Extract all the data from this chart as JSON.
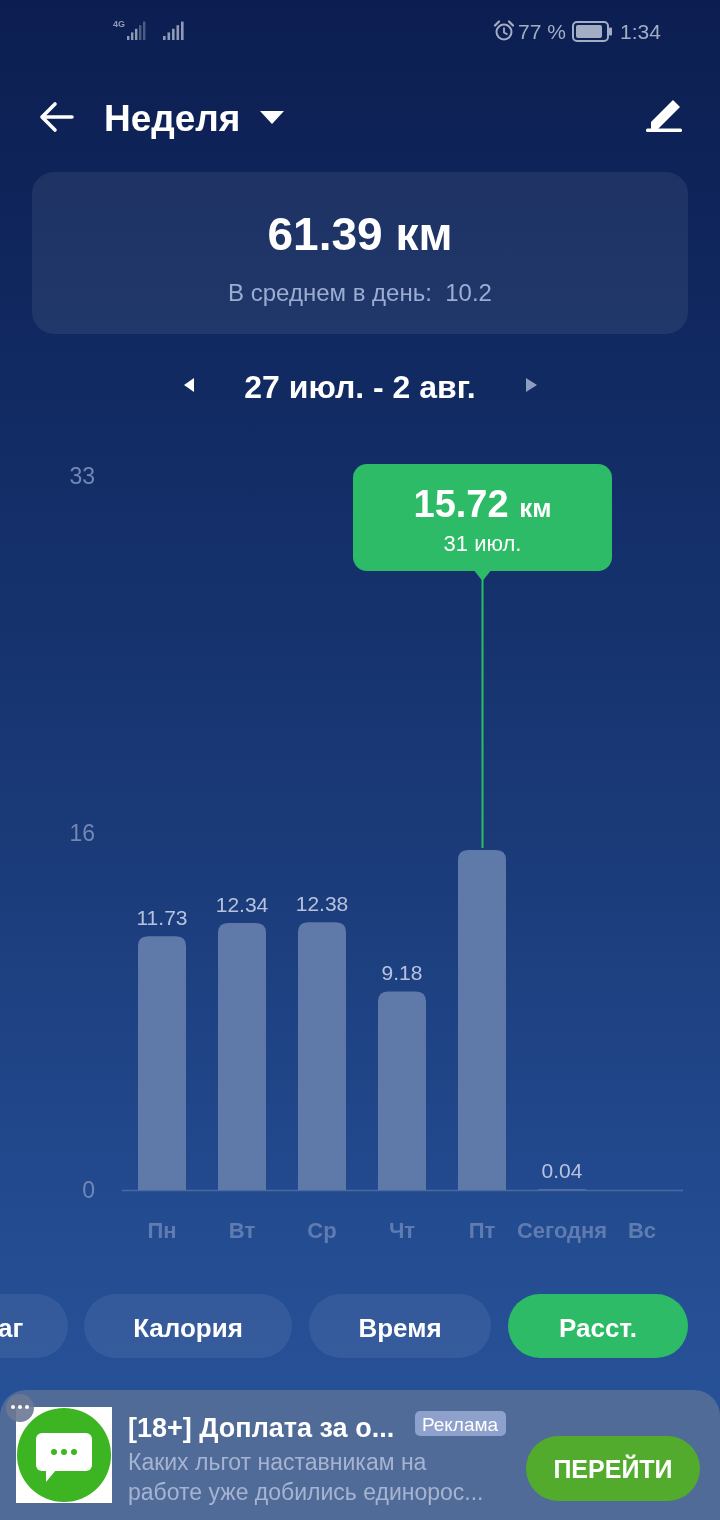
{
  "chart_data": {
    "type": "bar",
    "title": "Неделя",
    "subtitle": "27 июл. - 2 авг.",
    "categories": [
      "Пн",
      "Вт",
      "Ср",
      "Чт",
      "Пт",
      "Сегодня",
      "Вс"
    ],
    "values": [
      11.73,
      12.34,
      12.38,
      9.18,
      15.72,
      0.04,
      null
    ],
    "value_labels": [
      "11.73",
      "12.34",
      "12.38",
      "9.18",
      null,
      "0.04",
      null
    ],
    "color": "#5f7aa8",
    "ylim": [
      0,
      33
    ],
    "yticks": [
      0,
      {
        "value": 16.5,
        "label": "16"
      },
      33
    ],
    "grid": false,
    "annotations": [
      "4G",
      "77 %",
      "1:34",
      "61.39 км",
      "В среднем в день:  10.2",
      "15.72 км",
      "31 июл.",
      "аг",
      "Калория",
      "Время",
      "Расст.",
      "[18+] Доплата за о...",
      "Реклама",
      "Каких льгот наставникам на работе уже добились единорос...",
      "ПЕРЕЙТИ"
    ]
  }
}
